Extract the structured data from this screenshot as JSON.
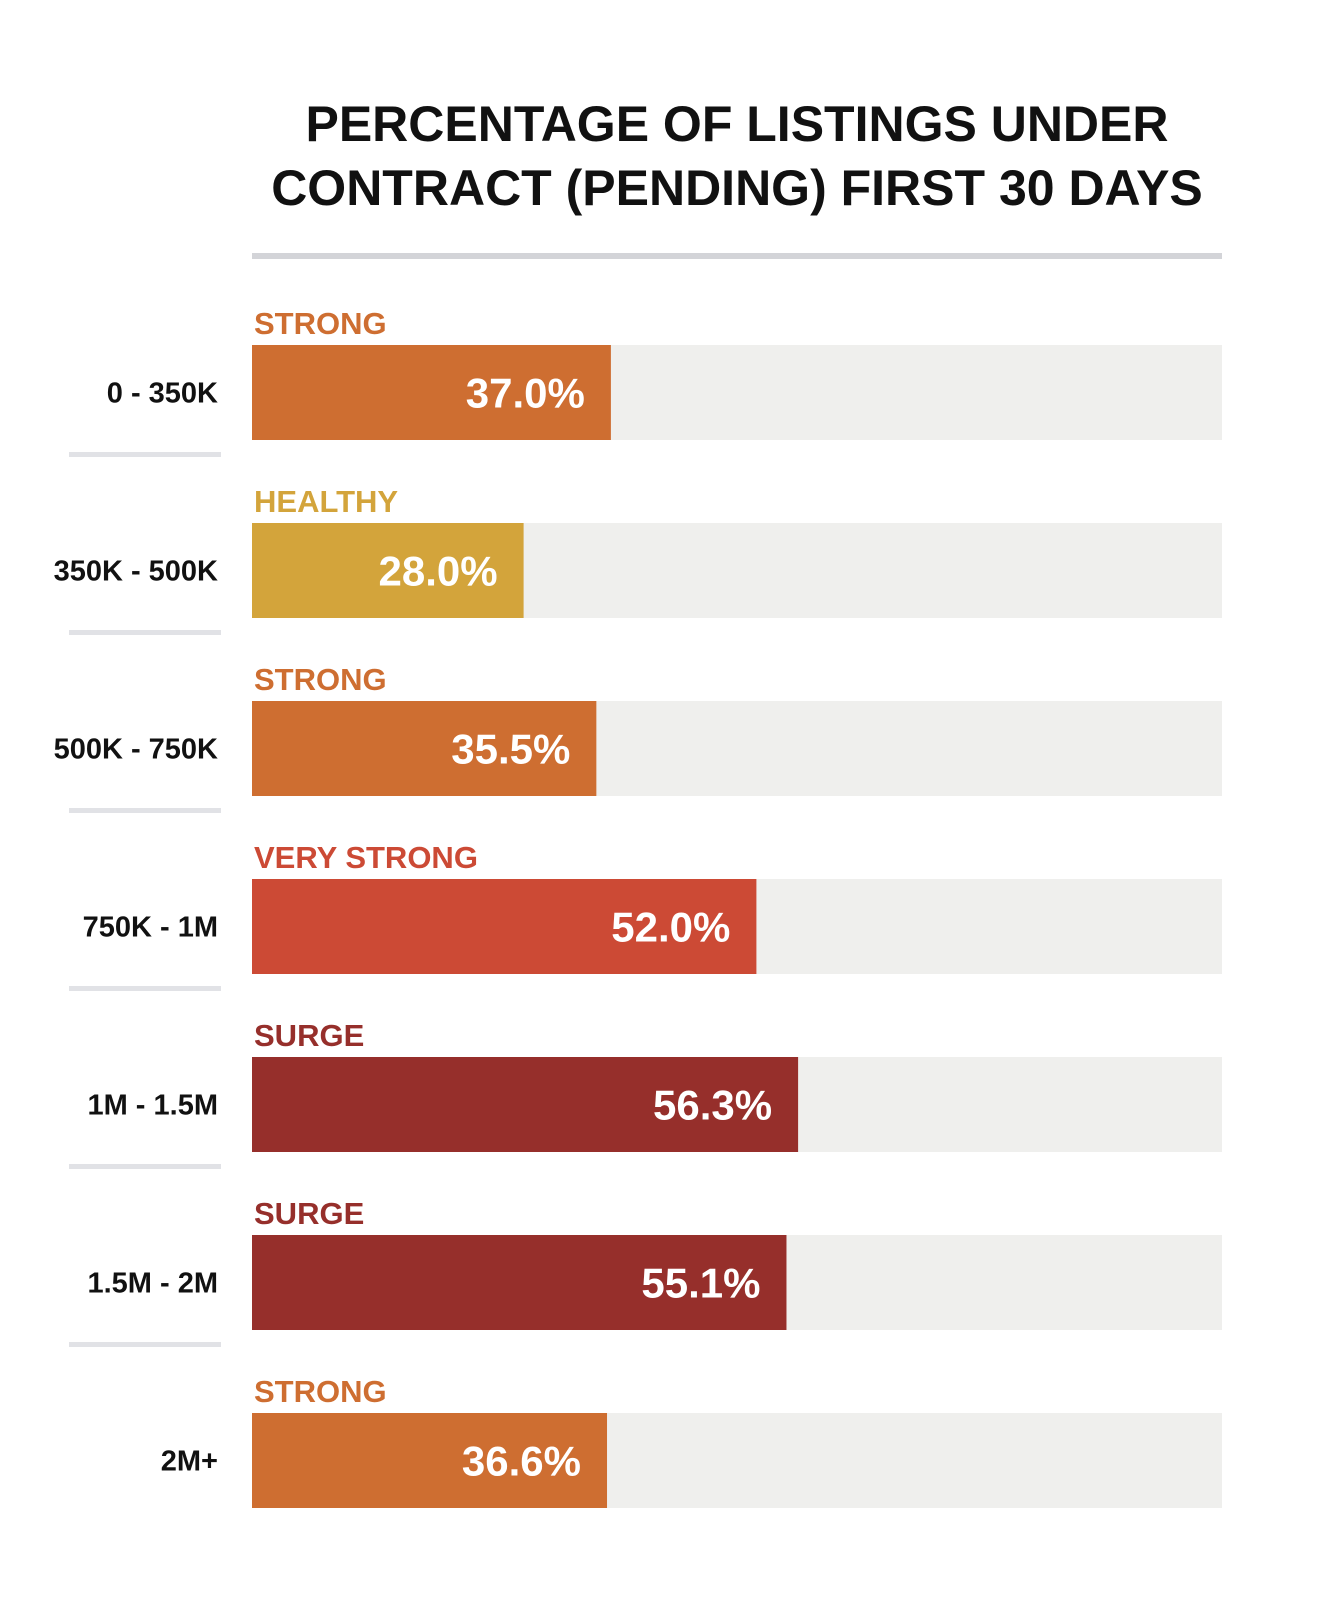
{
  "title": {
    "line1": "PERCENTAGE OF LISTINGS UNDER",
    "line2": "CONTRACT (PENDING) FIRST 30 DAYS"
  },
  "colors": {
    "STRONG": "#ce6e31",
    "HEALTHY": "#d3a43b",
    "VERY STRONG": "#cc4a35",
    "SURGE": "#962f2b",
    "track": "#efefed",
    "separator": "#e1e2e6",
    "value_text": "#ffffff",
    "category_text": "#111111"
  },
  "chart_data": {
    "type": "bar",
    "orientation": "horizontal",
    "title": "PERCENTAGE OF LISTINGS UNDER CONTRACT (PENDING) FIRST 30 DAYS",
    "unit": "%",
    "xlim": [
      0,
      100
    ],
    "grid": false,
    "categories": [
      "0 - 350K",
      "350K - 500K",
      "500K - 750K",
      "750K - 1M",
      "1M - 1.5M",
      "1.5M - 2M",
      "2M+"
    ],
    "values": [
      37.0,
      28.0,
      35.5,
      52.0,
      56.3,
      55.1,
      36.6
    ],
    "value_labels": [
      "37.0%",
      "28.0%",
      "35.5%",
      "52.0%",
      "56.3%",
      "55.1%",
      "36.6%"
    ],
    "status_labels": [
      "STRONG",
      "HEALTHY",
      "STRONG",
      "VERY STRONG",
      "SURGE",
      "SURGE",
      "STRONG"
    ]
  }
}
